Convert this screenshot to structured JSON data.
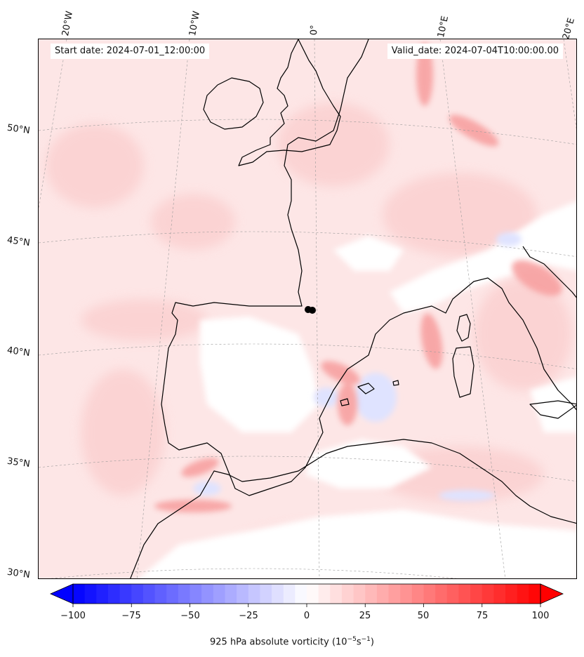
{
  "header": {
    "start_date": "Start date: 2024-07-01_12:00:00",
    "valid_date": "Valid_date: 2024-07-04T10:00:00.00"
  },
  "map": {
    "region": "Western Europe / Iberia / Western Mediterranean",
    "projection": "conic",
    "longitude_labels": [
      "20°W",
      "10°W",
      "0°",
      "10°E",
      "20°E"
    ],
    "latitude_labels": [
      "50°N",
      "45°N",
      "40°N",
      "35°N",
      "30°N"
    ],
    "gridlines": true,
    "marker": "black-dot"
  },
  "colorbar": {
    "min": -100,
    "max": 100,
    "ticks": [
      "−100",
      "−75",
      "−50",
      "−25",
      "0",
      "25",
      "50",
      "75",
      "100"
    ],
    "label_main": "925 hPa absolute vorticity (10",
    "label_exp1": "−5",
    "label_mid": "s",
    "label_exp2": "−1",
    "label_end": ")",
    "colormap": "bwr",
    "extend": "both",
    "colors": {
      "negative": "#0000ff",
      "neutral": "#ffffff",
      "positive": "#ff0000"
    }
  }
}
